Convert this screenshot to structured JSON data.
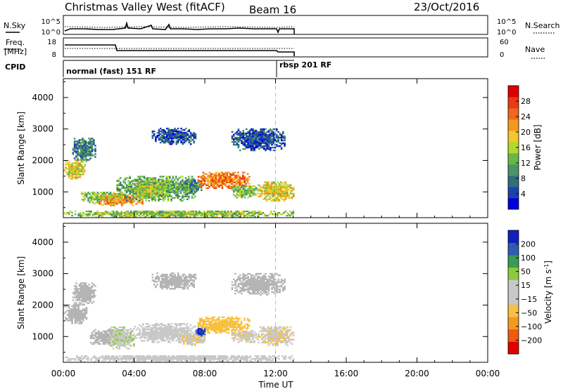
{
  "header": {
    "station": "Christmas Valley West (fitACF)",
    "beam": "Beam 16",
    "date": "23/Oct/2016"
  },
  "left_labels": {
    "nsky": "N.Sky",
    "freq_line1": "Freq.",
    "freq_line2": "[MHz]",
    "cpid": "CPID"
  },
  "right_labels": {
    "nsearch": "N.Search",
    "nave": "Nave"
  },
  "noise_panel": {
    "left_ticks": [
      "10^5",
      "10^0"
    ],
    "right_ticks": [
      "10^5",
      "10^0"
    ]
  },
  "freq_panel": {
    "left_ticks": [
      "18",
      "8"
    ],
    "right_ticks": [
      "60",
      "0"
    ]
  },
  "cpid_segments": [
    {
      "label": "normal (fast) 151 RF",
      "start_hour": 0,
      "end_hour": 12
    },
    {
      "label": "rbsp 201 RF",
      "start_hour": 12,
      "end_hour": 13
    }
  ],
  "colors": {
    "power_scale": [
      "#0000dd",
      "#2040b0",
      "#2f6f7a",
      "#4a9468",
      "#69b845",
      "#b2d82e",
      "#f2c82a",
      "#f29a20",
      "#f0681c",
      "#e83a14",
      "#dd0000"
    ],
    "velocity_scale": [
      "#e00000",
      "#ee5a10",
      "#f29a20",
      "#f7c040",
      "#c8c8c8",
      "#c8c8c8",
      "#8acb3c",
      "#3a9a56",
      "#2f5cb0",
      "#1020c0"
    ],
    "ground_scatter": "#b4b4b4"
  },
  "chart_data": [
    {
      "type": "heatmap",
      "name": "power",
      "xlabel": "Time UT",
      "ylabel": "Slant Range [km]",
      "xlim": [
        0,
        24
      ],
      "ylim": [
        180,
        4600
      ],
      "x_ticks": [
        "00:00",
        "04:00",
        "08:00",
        "12:00",
        "16:00",
        "20:00",
        "00:00"
      ],
      "y_ticks": [
        1000,
        2000,
        3000,
        4000
      ],
      "colorbar": {
        "label": "Power [dB]",
        "ticks": [
          4,
          8,
          12,
          16,
          20,
          24,
          28
        ],
        "range": [
          0,
          32
        ]
      },
      "regions": [
        {
          "t0": 0.0,
          "t1": 1.3,
          "r0": 1400,
          "r1": 2000,
          "value": 18
        },
        {
          "t0": 0.5,
          "t1": 1.8,
          "r0": 2000,
          "r1": 2700,
          "value": 8
        },
        {
          "t0": 1.0,
          "t1": 3.5,
          "r0": 600,
          "r1": 1000,
          "value": 14
        },
        {
          "t0": 2.0,
          "t1": 4.5,
          "r0": 550,
          "r1": 900,
          "value": 22
        },
        {
          "t0": 3.0,
          "t1": 7.5,
          "r0": 700,
          "r1": 1500,
          "value": 12
        },
        {
          "t0": 4.0,
          "t1": 5.5,
          "r0": 800,
          "r1": 1300,
          "value": 16
        },
        {
          "t0": 6.5,
          "t1": 7.8,
          "r0": 900,
          "r1": 1400,
          "value": 10
        },
        {
          "t0": 7.5,
          "t1": 10.5,
          "r0": 1100,
          "r1": 1600,
          "value": 24
        },
        {
          "t0": 9.5,
          "t1": 11.0,
          "r0": 800,
          "r1": 1200,
          "value": 14
        },
        {
          "t0": 11.0,
          "t1": 13.0,
          "r0": 700,
          "r1": 1300,
          "value": 18
        },
        {
          "t0": 0.0,
          "t1": 13.0,
          "r0": 180,
          "r1": 400,
          "value": 14
        },
        {
          "t0": 9.5,
          "t1": 12.5,
          "r0": 2300,
          "r1": 3000,
          "value": 6
        },
        {
          "t0": 5.0,
          "t1": 7.5,
          "r0": 2500,
          "r1": 3000,
          "value": 5
        }
      ]
    },
    {
      "type": "heatmap",
      "name": "velocity",
      "xlabel": "Time UT",
      "ylabel": "Slant Range [km]",
      "xlim": [
        0,
        24
      ],
      "ylim": [
        180,
        4600
      ],
      "x_ticks": [
        "00:00",
        "04:00",
        "08:00",
        "12:00",
        "16:00",
        "20:00",
        "00:00"
      ],
      "y_ticks": [
        1000,
        2000,
        3000,
        4000
      ],
      "colorbar": {
        "label": "Velocity [m s",
        "label_sup": "-1",
        "label_end": "]",
        "ticks": [
          "200",
          "100",
          "50",
          "15",
          "−15",
          "−50",
          "−100",
          "−200"
        ]
      },
      "regions": [
        {
          "t0": 0.0,
          "t1": 1.3,
          "r0": 1400,
          "r1": 2000,
          "value": 0,
          "ground": true
        },
        {
          "t0": 0.5,
          "t1": 1.8,
          "r0": 2000,
          "r1": 2700,
          "value": 0,
          "ground": true
        },
        {
          "t0": 1.5,
          "t1": 3.0,
          "r0": 700,
          "r1": 1200,
          "value": 0,
          "ground": true
        },
        {
          "t0": 2.5,
          "t1": 4.0,
          "r0": 600,
          "r1": 1300,
          "value": 40
        },
        {
          "t0": 4.0,
          "t1": 7.5,
          "r0": 800,
          "r1": 1400,
          "value": 30
        },
        {
          "t0": 6.5,
          "t1": 8.0,
          "r0": 700,
          "r1": 1100,
          "value": -40
        },
        {
          "t0": 7.5,
          "t1": 10.5,
          "r0": 1100,
          "r1": 1600,
          "value": -80
        },
        {
          "t0": 7.5,
          "t1": 8.0,
          "r0": 1000,
          "r1": 1250,
          "value": 200
        },
        {
          "t0": 9.5,
          "t1": 11.0,
          "r0": 800,
          "r1": 1200,
          "value": -40
        },
        {
          "t0": 11.0,
          "t1": 13.0,
          "r0": 700,
          "r1": 1300,
          "value": -40
        },
        {
          "t0": 0.0,
          "t1": 13.0,
          "r0": 180,
          "r1": 400,
          "value": -30
        },
        {
          "t0": 9.5,
          "t1": 12.5,
          "r0": 2300,
          "r1": 3000,
          "value": 0,
          "ground": true
        },
        {
          "t0": 5.0,
          "t1": 7.5,
          "r0": 2500,
          "r1": 3000,
          "value": 0,
          "ground": true
        }
      ]
    }
  ]
}
